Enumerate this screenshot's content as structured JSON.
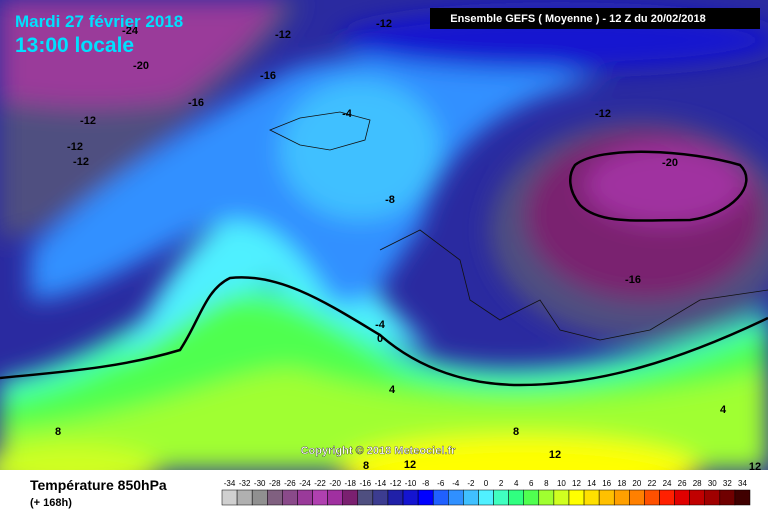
{
  "header": {
    "date": "Mardi 27 février 2018",
    "time": "13:00 locale",
    "run": "Ensemble GEFS  ( Moyenne )  -  12 Z du 20/02/2018"
  },
  "copyright": "Copyright © 2018 Meteociel.fr",
  "footer": {
    "title": "Température 850hPa",
    "lead": "(+ 168h)"
  },
  "contour_labels": [
    -24,
    -12,
    -12,
    -20,
    -16,
    -16,
    -12,
    -12,
    -12,
    -4,
    -12,
    -20,
    -8,
    -16,
    -4,
    0,
    4,
    8,
    8,
    12,
    12,
    8,
    4,
    12
  ],
  "scale": {
    "ticks": [
      -34,
      -32,
      -30,
      -28,
      -26,
      -24,
      -22,
      -20,
      -18,
      -16,
      -14,
      -12,
      -10,
      -8,
      -6,
      -4,
      -2,
      0,
      2,
      4,
      6,
      8,
      10,
      12,
      14,
      16,
      18,
      20,
      22,
      24,
      26,
      28,
      30,
      32,
      34
    ],
    "colors": [
      "#d0d0d0",
      "#b0b0b0",
      "#909090",
      "#806080",
      "#8a4a8a",
      "#9a3a9a",
      "#b040b0",
      "#a030a0",
      "#7a2070",
      "#4f4f80",
      "#3c3c90",
      "#2020a8",
      "#1414d0",
      "#0000ff",
      "#2060ff",
      "#3090ff",
      "#40c0ff",
      "#50f0ff",
      "#40ffc0",
      "#30ff80",
      "#50ff50",
      "#a0ff30",
      "#d0ff20",
      "#ffff00",
      "#ffe000",
      "#ffc000",
      "#ffa000",
      "#ff8000",
      "#ff5000",
      "#ff2000",
      "#e00000",
      "#c00000",
      "#a00000",
      "#700000",
      "#400000"
    ]
  }
}
